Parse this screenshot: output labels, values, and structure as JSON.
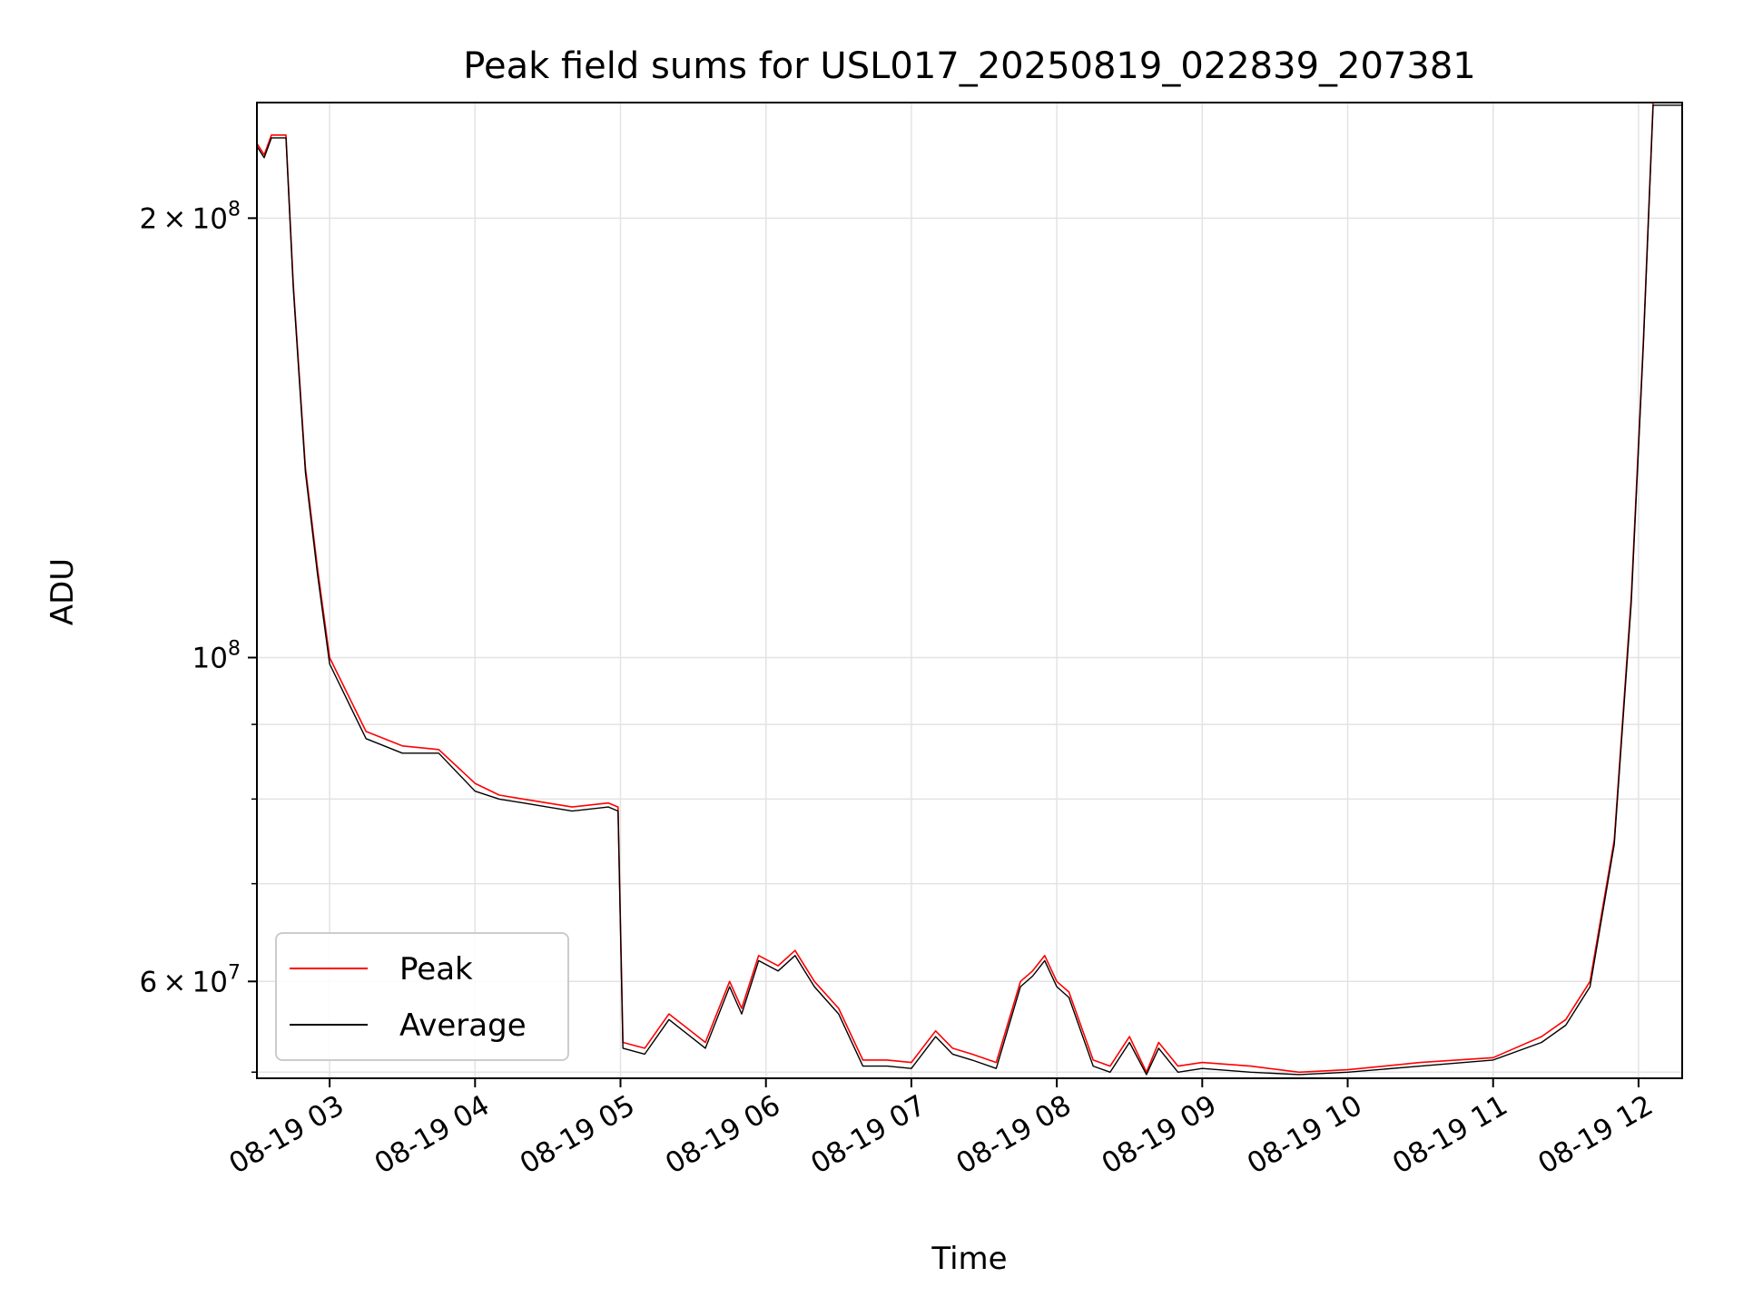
{
  "chart_data": {
    "type": "line",
    "title": "Peak field sums for USL017_20250819_022839_207381",
    "xlabel": "Time",
    "ylabel": "ADU",
    "xscale": "time",
    "yscale": "log",
    "xlim": [
      "2025-08-19 02:30",
      "2025-08-19 12:18"
    ],
    "ylim": [
      51500000,
      240000000
    ],
    "grid": true,
    "legend_position": "lower-left",
    "x_ticks": [
      "08-19 03",
      "08-19 04",
      "08-19 05",
      "08-19 06",
      "08-19 07",
      "08-19 08",
      "08-19 09",
      "08-19 10",
      "08-19 11",
      "08-19 12"
    ],
    "y_ticks": [
      {
        "value": 200000000,
        "mantissa": "2",
        "times": "×",
        "exponent": "8"
      },
      {
        "value": 100000000,
        "mantissa": "",
        "times": "",
        "exponent": "8"
      },
      {
        "value": 60000000,
        "mantissa": "6",
        "times": "×",
        "exponent": "7"
      }
    ],
    "y_minor_ticks": [
      70000000,
      80000000,
      90000000,
      52000000
    ],
    "series": [
      {
        "name": "Peak",
        "color": "#ff0000",
        "x": [
          "2025-08-19 02:30",
          "2025-08-19 02:33",
          "2025-08-19 02:36",
          "2025-08-19 02:42",
          "2025-08-19 02:45",
          "2025-08-19 02:50",
          "2025-08-19 02:55",
          "2025-08-19 03:00",
          "2025-08-19 03:15",
          "2025-08-19 03:30",
          "2025-08-19 03:45",
          "2025-08-19 04:00",
          "2025-08-19 04:10",
          "2025-08-19 04:20",
          "2025-08-19 04:40",
          "2025-08-19 04:55",
          "2025-08-19 04:59",
          "2025-08-19 05:01",
          "2025-08-19 05:10",
          "2025-08-19 05:20",
          "2025-08-19 05:35",
          "2025-08-19 05:45",
          "2025-08-19 05:50",
          "2025-08-19 05:57",
          "2025-08-19 06:05",
          "2025-08-19 06:12",
          "2025-08-19 06:20",
          "2025-08-19 06:30",
          "2025-08-19 06:40",
          "2025-08-19 06:50",
          "2025-08-19 07:00",
          "2025-08-19 07:10",
          "2025-08-19 07:17",
          "2025-08-19 07:25",
          "2025-08-19 07:35",
          "2025-08-19 07:45",
          "2025-08-19 07:50",
          "2025-08-19 07:55",
          "2025-08-19 08:00",
          "2025-08-19 08:05",
          "2025-08-19 08:15",
          "2025-08-19 08:22",
          "2025-08-19 08:30",
          "2025-08-19 08:37",
          "2025-08-19 08:42",
          "2025-08-19 08:50",
          "2025-08-19 09:00",
          "2025-08-19 09:20",
          "2025-08-19 09:40",
          "2025-08-19 10:00",
          "2025-08-19 10:30",
          "2025-08-19 11:00",
          "2025-08-19 11:20",
          "2025-08-19 11:30",
          "2025-08-19 11:40",
          "2025-08-19 11:50",
          "2025-08-19 11:57",
          "2025-08-19 12:02",
          "2025-08-19 12:06",
          "2025-08-19 12:18"
        ],
        "values": [
          225000000,
          221000000,
          228000000,
          228000000,
          180000000,
          135000000,
          115000000,
          100000000,
          89000000,
          87000000,
          86500000,
          82000000,
          80500000,
          80000000,
          79000000,
          79500000,
          79000000,
          54500000,
          54000000,
          57000000,
          54500000,
          60000000,
          57500000,
          62500000,
          61500000,
          63000000,
          60000000,
          57500000,
          53000000,
          53000000,
          52800000,
          55500000,
          54000000,
          53500000,
          52800000,
          60000000,
          61000000,
          62500000,
          60000000,
          59000000,
          53000000,
          52500000,
          55000000,
          52000000,
          54500000,
          52500000,
          52800000,
          52500000,
          52000000,
          52200000,
          52800000,
          53200000,
          55000000,
          56500000,
          60000000,
          75000000,
          110000000,
          165000000,
          240000000,
          240000000
        ]
      },
      {
        "name": "Average",
        "color": "#000000",
        "x": [
          "2025-08-19 02:30",
          "2025-08-19 02:33",
          "2025-08-19 02:36",
          "2025-08-19 02:42",
          "2025-08-19 02:45",
          "2025-08-19 02:50",
          "2025-08-19 02:55",
          "2025-08-19 03:00",
          "2025-08-19 03:15",
          "2025-08-19 03:30",
          "2025-08-19 03:45",
          "2025-08-19 04:00",
          "2025-08-19 04:10",
          "2025-08-19 04:20",
          "2025-08-19 04:40",
          "2025-08-19 04:55",
          "2025-08-19 04:59",
          "2025-08-19 05:01",
          "2025-08-19 05:10",
          "2025-08-19 05:20",
          "2025-08-19 05:35",
          "2025-08-19 05:45",
          "2025-08-19 05:50",
          "2025-08-19 05:57",
          "2025-08-19 06:05",
          "2025-08-19 06:12",
          "2025-08-19 06:20",
          "2025-08-19 06:30",
          "2025-08-19 06:40",
          "2025-08-19 06:50",
          "2025-08-19 07:00",
          "2025-08-19 07:10",
          "2025-08-19 07:17",
          "2025-08-19 07:25",
          "2025-08-19 07:35",
          "2025-08-19 07:45",
          "2025-08-19 07:50",
          "2025-08-19 07:55",
          "2025-08-19 08:00",
          "2025-08-19 08:05",
          "2025-08-19 08:15",
          "2025-08-19 08:22",
          "2025-08-19 08:30",
          "2025-08-19 08:37",
          "2025-08-19 08:42",
          "2025-08-19 08:50",
          "2025-08-19 09:00",
          "2025-08-19 09:20",
          "2025-08-19 09:40",
          "2025-08-19 10:00",
          "2025-08-19 10:30",
          "2025-08-19 11:00",
          "2025-08-19 11:20",
          "2025-08-19 11:30",
          "2025-08-19 11:40",
          "2025-08-19 11:50",
          "2025-08-19 11:57",
          "2025-08-19 12:02",
          "2025-08-19 12:06",
          "2025-08-19 12:18"
        ],
        "values": [
          224000000,
          220000000,
          227000000,
          227000000,
          179000000,
          134000000,
          114000000,
          99000000,
          88000000,
          86000000,
          86000000,
          81000000,
          80000000,
          79500000,
          78500000,
          79000000,
          78500000,
          54000000,
          53500000,
          56500000,
          54000000,
          59500000,
          57000000,
          62000000,
          61000000,
          62500000,
          59500000,
          57000000,
          52500000,
          52500000,
          52300000,
          55000000,
          53500000,
          53000000,
          52300000,
          59500000,
          60500000,
          62000000,
          59500000,
          58500000,
          52500000,
          52000000,
          54500000,
          51800000,
          54000000,
          52000000,
          52300000,
          52000000,
          51800000,
          52000000,
          52500000,
          53000000,
          54500000,
          56000000,
          59500000,
          74500000,
          109000000,
          164000000,
          239000000,
          239000000
        ]
      }
    ]
  }
}
